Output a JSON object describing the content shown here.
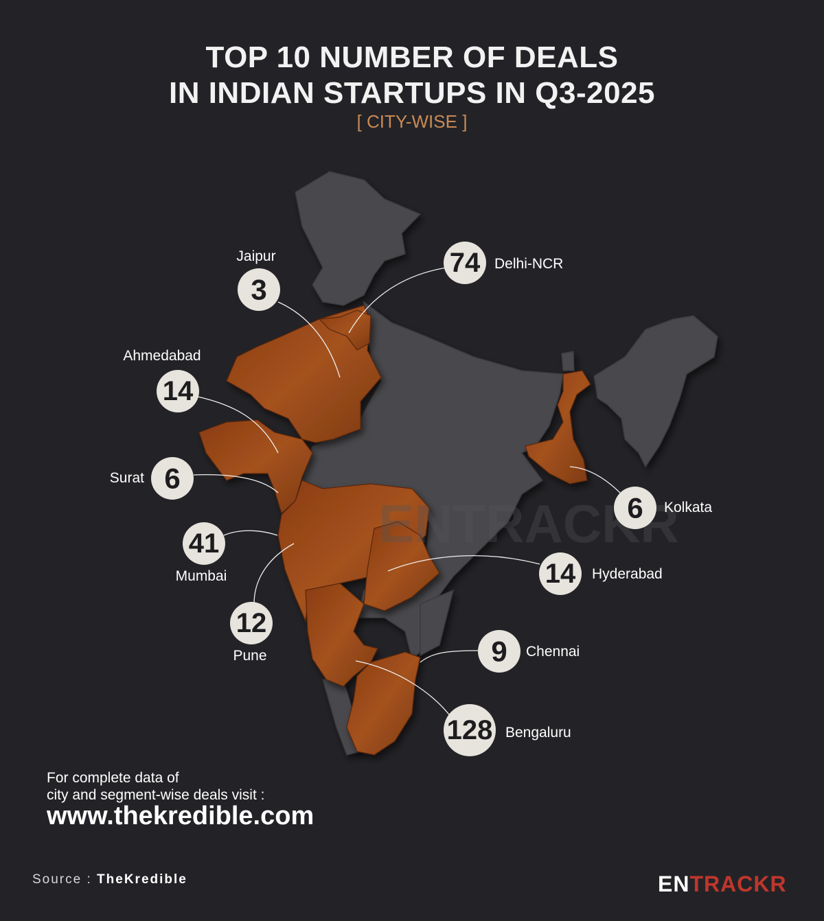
{
  "header": {
    "title_line1": "TOP 10 NUMBER OF DEALS",
    "title_line2": "IN INDIAN STARTUPS IN Q3-2025",
    "subtitle": "[ CITY-WISE ]"
  },
  "colors": {
    "background": "#232327",
    "region_grey": "#4a4a4d",
    "region_highlight": "#9a4a18",
    "badge_fill": "#e7e3dd",
    "subtitle_accent": "#c98a55",
    "brand_red": "#c0362c"
  },
  "map": {
    "watermark": "ENTRACKR",
    "cities": [
      {
        "name": "Delhi-NCR",
        "deals": 74
      },
      {
        "name": "Jaipur",
        "deals": 3
      },
      {
        "name": "Ahmedabad",
        "deals": 14
      },
      {
        "name": "Surat",
        "deals": 6
      },
      {
        "name": "Mumbai",
        "deals": 41
      },
      {
        "name": "Pune",
        "deals": 12
      },
      {
        "name": "Kolkata",
        "deals": 6
      },
      {
        "name": "Hyderabad",
        "deals": 14
      },
      {
        "name": "Chennai",
        "deals": 9
      },
      {
        "name": "Bengaluru",
        "deals": 128
      }
    ]
  },
  "footer": {
    "cta_line1": "For complete data of",
    "cta_line2": "city and segment-wise deals visit :",
    "url": "www.thekredible.com",
    "source_label": "Source :",
    "source_name": "TheKredible",
    "brand_part1": "EN",
    "brand_part2": "TRACKR"
  }
}
